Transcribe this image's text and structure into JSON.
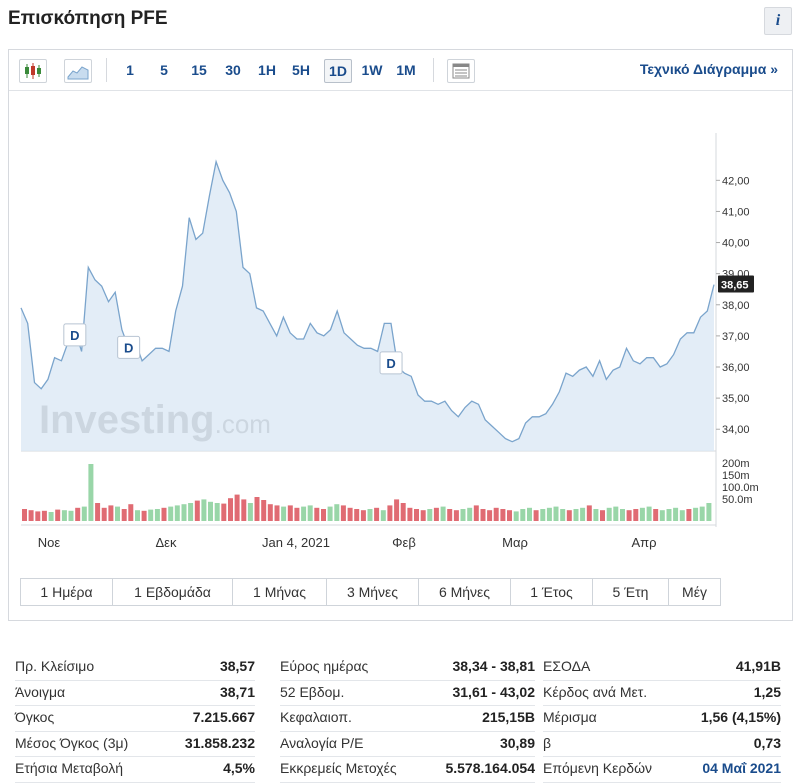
{
  "header": {
    "title": "Επισκόπηση PFE",
    "info_label": "i"
  },
  "toolbar": {
    "candles_icon": "candlestick-chart-icon",
    "area_icon": "area-chart-icon",
    "intervals": [
      "1",
      "5",
      "15",
      "30",
      "1H",
      "5H",
      "1D",
      "1W",
      "1M"
    ],
    "active_interval": "1D",
    "table_icon": "table-icon",
    "tech_chart_link": "Τεχνικό Διάγραμμα »"
  },
  "chart_data": {
    "type": "area",
    "price_axis_ticks": [
      "42,00",
      "41,00",
      "40,00",
      "39,00",
      "38,00",
      "37,00",
      "36,00",
      "35,00",
      "34,00"
    ],
    "volume_axis_ticks": [
      "200m",
      "150m",
      "100.0m",
      "50.0m"
    ],
    "x_labels": [
      "Νοε",
      "Δεκ",
      "Jan 4, 2021",
      "Φεβ",
      "Μαρ",
      "Απρ"
    ],
    "last_price_label": "38,65",
    "dividend_marker": "D",
    "watermark_main": "Investing",
    "watermark_suffix": ".com",
    "ylim": [
      33.3,
      43.2
    ],
    "price_series": [
      37.9,
      37.4,
      35.5,
      35.3,
      35.6,
      36.3,
      36.2,
      36.8,
      37.2,
      36.5,
      39.2,
      38.8,
      38.6,
      38.1,
      38.4,
      37.2,
      36.6,
      36.8,
      36.2,
      36.4,
      36.6,
      36.6,
      36.5,
      37.8,
      38.6,
      40.8,
      40.1,
      40.3,
      41.5,
      42.6,
      42.0,
      41.6,
      41.0,
      39.2,
      39.0,
      37.9,
      37.8,
      37.4,
      37.0,
      37.6,
      37.1,
      36.9,
      36.9,
      37.4,
      37.1,
      37.0,
      37.2,
      37.8,
      37.1,
      36.9,
      36.7,
      36.6,
      36.6,
      36.5,
      37.4,
      37.4,
      36.0,
      35.8,
      35.7,
      35.1,
      34.9,
      34.9,
      34.8,
      34.9,
      34.6,
      34.4,
      34.7,
      34.9,
      34.8,
      34.3,
      34.1,
      33.9,
      33.7,
      33.6,
      33.7,
      34.2,
      34.4,
      34.4,
      34.5,
      34.8,
      35.2,
      35.8,
      35.7,
      35.9,
      36.0,
      35.7,
      36.2,
      35.6,
      35.9,
      36.0,
      36.6,
      36.2,
      36.1,
      36.3,
      36.3,
      36.0,
      36.1,
      36.4,
      36.9,
      37.1,
      37.1,
      37.6,
      37.8,
      38.65
    ],
    "volume_series": [
      20,
      18,
      16,
      17,
      15,
      19,
      18,
      17,
      22,
      24,
      95,
      30,
      22,
      26,
      24,
      20,
      28,
      18,
      17,
      19,
      20,
      22,
      24,
      26,
      28,
      30,
      34,
      36,
      32,
      30,
      29,
      38,
      44,
      36,
      30,
      40,
      35,
      28,
      26,
      24,
      26,
      22,
      24,
      26,
      22,
      20,
      24,
      28,
      26,
      22,
      20,
      18,
      20,
      22,
      18,
      26,
      36,
      30,
      22,
      20,
      18,
      20,
      22,
      24,
      20,
      18,
      20,
      22,
      26,
      20,
      18,
      22,
      20,
      18,
      16,
      20,
      22,
      18,
      20,
      22,
      24,
      20,
      18,
      20,
      22,
      26,
      20,
      18,
      22,
      24,
      20,
      18,
      20,
      22,
      24,
      20,
      18,
      20,
      22,
      18,
      20,
      22,
      24,
      30
    ],
    "volume_colors": [
      "#e06b73",
      "#e06b73",
      "#e06b73",
      "#e06b73",
      "#99d6a8",
      "#e06b73",
      "#99d6a8",
      "#99d6a8",
      "#e06b73",
      "#99d6a8",
      "#99d6a8",
      "#e06b73",
      "#e06b73",
      "#e06b73",
      "#99d6a8",
      "#e06b73",
      "#e06b73",
      "#99d6a8",
      "#e06b73",
      "#99d6a8",
      "#99d6a8",
      "#e06b73",
      "#99d6a8",
      "#99d6a8",
      "#99d6a8",
      "#99d6a8",
      "#e06b73",
      "#99d6a8",
      "#99d6a8",
      "#99d6a8",
      "#e06b73",
      "#e06b73",
      "#e06b73",
      "#e06b73",
      "#99d6a8",
      "#e06b73",
      "#e06b73",
      "#e06b73",
      "#e06b73",
      "#99d6a8",
      "#e06b73",
      "#e06b73",
      "#99d6a8",
      "#99d6a8",
      "#e06b73",
      "#e06b73",
      "#99d6a8",
      "#99d6a8",
      "#e06b73",
      "#e06b73",
      "#e06b73",
      "#e06b73",
      "#99d6a8",
      "#e06b73",
      "#99d6a8",
      "#e06b73",
      "#e06b73",
      "#e06b73",
      "#e06b73",
      "#e06b73",
      "#e06b73",
      "#99d6a8",
      "#e06b73",
      "#99d6a8",
      "#e06b73",
      "#e06b73",
      "#99d6a8",
      "#99d6a8",
      "#e06b73",
      "#e06b73",
      "#e06b73",
      "#e06b73",
      "#e06b73",
      "#e06b73",
      "#99d6a8",
      "#99d6a8",
      "#99d6a8",
      "#e06b73",
      "#99d6a8",
      "#99d6a8",
      "#99d6a8",
      "#99d6a8",
      "#e06b73",
      "#99d6a8",
      "#99d6a8",
      "#e06b73",
      "#99d6a8",
      "#e06b73",
      "#99d6a8",
      "#99d6a8",
      "#99d6a8",
      "#e06b73",
      "#e06b73",
      "#99d6a8",
      "#99d6a8",
      "#e06b73",
      "#99d6a8",
      "#99d6a8",
      "#99d6a8",
      "#99d6a8",
      "#e06b73",
      "#99d6a8",
      "#99d6a8",
      "#99d6a8"
    ],
    "line_color": "#7aa4cc",
    "fill_color": "#dce9f5"
  },
  "ranges": [
    "1 Ημέρα",
    "1 Εβδομάδα",
    "1 Μήνας",
    "3 Μήνες",
    "6 Μήνες",
    "1 Έτος",
    "5 Έτη",
    "Μέγ"
  ],
  "stats": {
    "col1": [
      {
        "label": "Πρ. Κλείσιμο",
        "value": "38,57"
      },
      {
        "label": "Άνοιγμα",
        "value": "38,71"
      },
      {
        "label": "Όγκος",
        "value": "7.215.667"
      },
      {
        "label": "Μέσος Όγκος (3μ)",
        "value": "31.858.232"
      },
      {
        "label": "Ετήσια Μεταβολή",
        "value": "4,5%"
      }
    ],
    "col2": [
      {
        "label": "Εύρος ημέρας",
        "value": "38,34 - 38,81"
      },
      {
        "label": "52 Εβδομ.",
        "value": "31,61 - 43,02"
      },
      {
        "label": "Κεφαλαιοπ.",
        "value": "215,15B"
      },
      {
        "label": "Αναλογία P/E",
        "value": "30,89"
      },
      {
        "label": "Εκκρεμείς Μετοχές",
        "value": "5.578.164.054"
      }
    ],
    "col3": [
      {
        "label": "ΕΣΟΔΑ",
        "value": "41,91B"
      },
      {
        "label": "Κέρδος ανά Μετ.",
        "value": "1,25"
      },
      {
        "label": "Μέρισμα",
        "value": "1,56 (4,15%)"
      },
      {
        "label": "β",
        "value": "0,73"
      },
      {
        "label": "Επόμενη Κερδών",
        "value": "04 Μαΐ 2021"
      }
    ]
  }
}
